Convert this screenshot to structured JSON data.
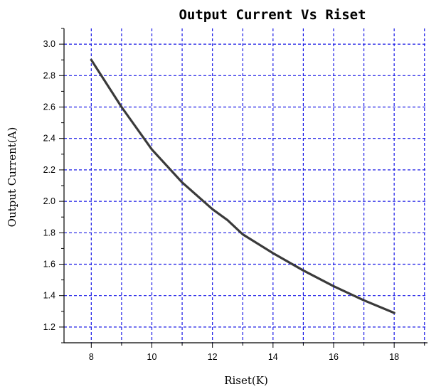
{
  "chart_data": {
    "type": "line",
    "title": "Output Current Vs Riset",
    "xlabel": "Riset(K)",
    "ylabel": "Output Current(A)",
    "xlim": [
      7.1,
      19.1
    ],
    "ylim": [
      1.1,
      3.1
    ],
    "xticks": [
      "8",
      "10",
      "12",
      "14",
      "16",
      "18"
    ],
    "yticks": [
      "1.2",
      "1.4",
      "1.6",
      "1.8",
      "2.0",
      "2.2",
      "2.4",
      "2.6",
      "2.8",
      "3.0"
    ],
    "grid": true,
    "series": [
      {
        "x": [
          8,
          9,
          10,
          11,
          12,
          12.5,
          13,
          14,
          15,
          16,
          17,
          18
        ],
        "y": [
          2.9,
          2.6,
          2.33,
          2.12,
          1.95,
          1.88,
          1.79,
          1.67,
          1.56,
          1.46,
          1.37,
          1.29
        ],
        "color": "#3a3a3a"
      }
    ]
  }
}
